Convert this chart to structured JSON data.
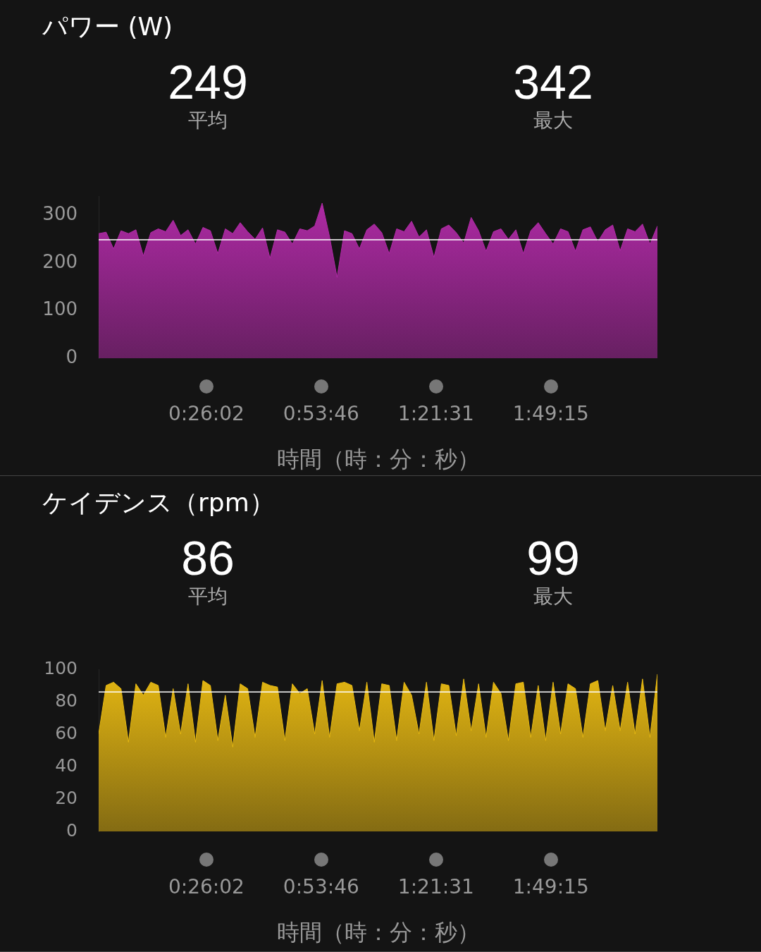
{
  "chart_data": [
    {
      "type": "area",
      "title": "パワー (W)",
      "annotations": [
        "249",
        "平均",
        "342",
        "最大"
      ],
      "xlabel": "時間（時：分：秒）",
      "x": [
        0,
        0.03,
        0.06,
        0.09,
        0.12,
        0.15,
        0.18,
        0.21,
        0.24,
        0.27,
        0.3,
        0.33,
        0.36,
        0.39,
        0.42,
        0.45,
        0.48,
        0.51,
        0.54,
        0.57,
        0.6,
        0.63,
        0.66,
        0.69,
        0.72,
        0.75,
        0.78,
        0.81,
        0.84,
        0.87,
        0.9,
        0.93,
        0.96,
        0.99,
        1.02,
        1.05,
        1.08,
        1.11,
        1.14,
        1.17,
        1.2,
        1.23,
        1.26,
        1.29,
        1.32,
        1.35,
        1.38,
        1.41,
        1.44,
        1.47,
        1.5,
        1.53,
        1.56,
        1.59,
        1.62,
        1.65,
        1.68,
        1.71,
        1.74,
        1.77,
        1.8,
        1.83,
        1.86,
        1.89,
        1.92,
        1.95,
        1.98,
        2.01,
        2.04,
        2.07,
        2.1,
        2.13,
        2.16,
        2.19,
        2.22,
        2.25
      ],
      "values": [
        262,
        265,
        230,
        268,
        262,
        270,
        215,
        264,
        272,
        266,
        290,
        258,
        270,
        240,
        275,
        268,
        220,
        272,
        262,
        285,
        266,
        250,
        274,
        210,
        270,
        265,
        240,
        272,
        268,
        278,
        326,
        255,
        170,
        268,
        262,
        230,
        270,
        282,
        264,
        220,
        272,
        266,
        288,
        255,
        270,
        212,
        272,
        280,
        264,
        242,
        296,
        268,
        225,
        266,
        272,
        250,
        270,
        220,
        268,
        285,
        262,
        240,
        272,
        266,
        225,
        270,
        276,
        245,
        270,
        280,
        226,
        272,
        266,
        282,
        240,
        278
      ],
      "color": "#b02aa6",
      "ylim": [
        0,
        340
      ],
      "yticks": [
        0,
        100,
        200,
        300
      ],
      "xlim": [
        0,
        2.25
      ],
      "xticks": [
        {
          "value": 0.43389,
          "label": "0:26:02"
        },
        {
          "value": 0.89611,
          "label": "0:53:46"
        },
        {
          "value": 1.35861,
          "label": "1:21:31"
        },
        {
          "value": 1.82083,
          "label": "1:49:15"
        }
      ],
      "ref_lines": [
        {
          "axis": "y",
          "value": 249,
          "color": "#ffffff"
        }
      ],
      "grid": false,
      "legend": false
    },
    {
      "type": "area",
      "title": "ケイデンス（rpm）",
      "annotations": [
        "86",
        "平均",
        "99",
        "最大"
      ],
      "xlabel": "時間（時：分：秒）",
      "x": [
        0,
        0.03,
        0.06,
        0.09,
        0.12,
        0.15,
        0.18,
        0.21,
        0.24,
        0.27,
        0.3,
        0.33,
        0.36,
        0.39,
        0.42,
        0.45,
        0.48,
        0.51,
        0.54,
        0.57,
        0.6,
        0.63,
        0.66,
        0.69,
        0.72,
        0.75,
        0.78,
        0.81,
        0.84,
        0.87,
        0.9,
        0.93,
        0.96,
        0.99,
        1.02,
        1.05,
        1.08,
        1.11,
        1.14,
        1.17,
        1.2,
        1.23,
        1.26,
        1.29,
        1.32,
        1.35,
        1.38,
        1.41,
        1.44,
        1.47,
        1.5,
        1.53,
        1.56,
        1.59,
        1.62,
        1.65,
        1.68,
        1.71,
        1.74,
        1.77,
        1.8,
        1.83,
        1.86,
        1.89,
        1.92,
        1.95,
        1.98,
        2.01,
        2.04,
        2.07,
        2.1,
        2.13,
        2.16,
        2.19,
        2.22,
        2.25
      ],
      "values": [
        60,
        90,
        92,
        88,
        55,
        91,
        84,
        92,
        90,
        58,
        88,
        60,
        91,
        55,
        93,
        90,
        56,
        84,
        52,
        91,
        88,
        58,
        92,
        90,
        89,
        56,
        91,
        85,
        88,
        60,
        93,
        58,
        91,
        92,
        90,
        62,
        92,
        55,
        91,
        90,
        56,
        92,
        84,
        60,
        92,
        56,
        91,
        90,
        59,
        94,
        62,
        91,
        58,
        92,
        85,
        56,
        91,
        92,
        58,
        90,
        56,
        92,
        60,
        91,
        88,
        58,
        91,
        93,
        62,
        90,
        62,
        92,
        60,
        94,
        58,
        97
      ],
      "color": "#e6b812",
      "ylim": [
        0,
        100
      ],
      "yticks": [
        0,
        20,
        40,
        60,
        80,
        100
      ],
      "xlim": [
        0,
        2.25
      ],
      "xticks": [
        {
          "value": 0.43389,
          "label": "0:26:02"
        },
        {
          "value": 0.89611,
          "label": "0:53:46"
        },
        {
          "value": 1.35861,
          "label": "1:21:31"
        },
        {
          "value": 1.82083,
          "label": "1:49:15"
        }
      ],
      "ref_lines": [
        {
          "axis": "y",
          "value": 86,
          "color": "#ffffff"
        }
      ],
      "grid": false,
      "legend": false
    }
  ]
}
